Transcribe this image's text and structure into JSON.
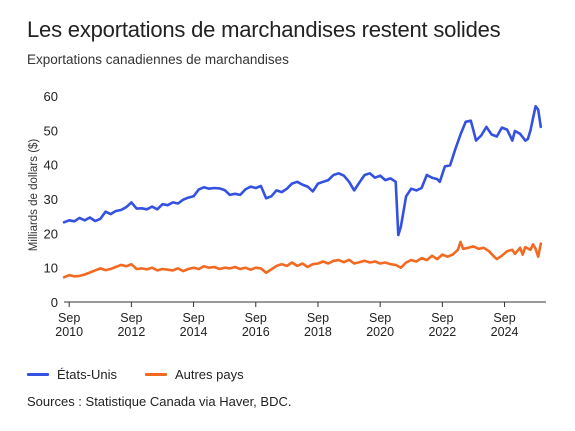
{
  "chart_data": {
    "type": "line",
    "title": "Les exportations de marchandises restent solides",
    "subtitle": "Exportations canadiennes de marchandises",
    "ylabel": "Milliards de dollars ($)",
    "xlabel": "",
    "ylim": [
      0,
      60
    ],
    "yticks": [
      0,
      10,
      20,
      30,
      40,
      50,
      60
    ],
    "xlim": [
      "2009-07",
      "2025-01"
    ],
    "xticks": [
      {
        "month": "Sep",
        "year": "2010",
        "at": "2009-09"
      },
      {
        "month": "Sep",
        "year": "2012",
        "at": "2011-09"
      },
      {
        "month": "Sep",
        "year": "2014",
        "at": "2013-09"
      },
      {
        "month": "Sep",
        "year": "2016",
        "at": "2015-09"
      },
      {
        "month": "Sep",
        "year": "2018",
        "at": "2017-09"
      },
      {
        "month": "Sep",
        "year": "2020",
        "at": "2019-09"
      },
      {
        "month": "Sep",
        "year": "2022",
        "at": "2021-09"
      },
      {
        "month": "Sep",
        "year": "2024",
        "at": "2023-09"
      }
    ],
    "grid": false,
    "legend_position": "bottom-left",
    "series": [
      {
        "name": "États-Unis",
        "color": "#3451e0",
        "points": [
          [
            "2009-07",
            23.2
          ],
          [
            "2009-09",
            23.8
          ],
          [
            "2009-11",
            23.5
          ],
          [
            "2010-01",
            24.5
          ],
          [
            "2010-03",
            23.8
          ],
          [
            "2010-05",
            24.6
          ],
          [
            "2010-07",
            23.6
          ],
          [
            "2010-09",
            24.2
          ],
          [
            "2010-11",
            26.3
          ],
          [
            "2011-01",
            25.6
          ],
          [
            "2011-03",
            26.5
          ],
          [
            "2011-05",
            26.8
          ],
          [
            "2011-07",
            27.6
          ],
          [
            "2011-09",
            29.0
          ],
          [
            "2011-11",
            27.2
          ],
          [
            "2012-01",
            27.3
          ],
          [
            "2012-03",
            27.0
          ],
          [
            "2012-05",
            27.8
          ],
          [
            "2012-07",
            27.0
          ],
          [
            "2012-09",
            28.5
          ],
          [
            "2012-11",
            28.2
          ],
          [
            "2013-01",
            29.0
          ],
          [
            "2013-03",
            28.7
          ],
          [
            "2013-05",
            29.8
          ],
          [
            "2013-07",
            30.4
          ],
          [
            "2013-09",
            30.8
          ],
          [
            "2013-11",
            32.8
          ],
          [
            "2014-01",
            33.4
          ],
          [
            "2014-03",
            33.0
          ],
          [
            "2014-05",
            33.2
          ],
          [
            "2014-07",
            33.1
          ],
          [
            "2014-09",
            32.6
          ],
          [
            "2014-11",
            31.2
          ],
          [
            "2015-01",
            31.5
          ],
          [
            "2015-03",
            31.2
          ],
          [
            "2015-05",
            32.8
          ],
          [
            "2015-07",
            33.6
          ],
          [
            "2015-09",
            33.2
          ],
          [
            "2015-11",
            33.8
          ],
          [
            "2016-01",
            30.2
          ],
          [
            "2016-03",
            30.8
          ],
          [
            "2016-05",
            32.5
          ],
          [
            "2016-07",
            32.0
          ],
          [
            "2016-09",
            33.0
          ],
          [
            "2016-11",
            34.5
          ],
          [
            "2017-01",
            35.0
          ],
          [
            "2017-03",
            34.2
          ],
          [
            "2017-05",
            33.6
          ],
          [
            "2017-07",
            32.2
          ],
          [
            "2017-09",
            34.5
          ],
          [
            "2017-11",
            35.0
          ],
          [
            "2018-01",
            35.5
          ],
          [
            "2018-03",
            37.0
          ],
          [
            "2018-05",
            37.5
          ],
          [
            "2018-07",
            36.8
          ],
          [
            "2018-09",
            35.0
          ],
          [
            "2018-11",
            32.5
          ],
          [
            "2019-01",
            34.8
          ],
          [
            "2019-03",
            37.0
          ],
          [
            "2019-05",
            37.5
          ],
          [
            "2019-07",
            36.2
          ],
          [
            "2019-09",
            36.8
          ],
          [
            "2019-11",
            35.5
          ],
          [
            "2020-01",
            36.0
          ],
          [
            "2020-03",
            35.0
          ],
          [
            "2020-04",
            19.5
          ],
          [
            "2020-05",
            22.0
          ],
          [
            "2020-07",
            30.8
          ],
          [
            "2020-09",
            33.0
          ],
          [
            "2020-11",
            32.5
          ],
          [
            "2021-01",
            33.2
          ],
          [
            "2021-03",
            37.0
          ],
          [
            "2021-05",
            36.2
          ],
          [
            "2021-07",
            35.8
          ],
          [
            "2021-08",
            35.0
          ],
          [
            "2021-10",
            39.5
          ],
          [
            "2021-12",
            39.8
          ],
          [
            "2022-02",
            44.5
          ],
          [
            "2022-04",
            48.8
          ],
          [
            "2022-06",
            52.5
          ],
          [
            "2022-08",
            52.8
          ],
          [
            "2022-09",
            50.0
          ],
          [
            "2022-10",
            47.0
          ],
          [
            "2022-12",
            48.5
          ],
          [
            "2023-02",
            51.0
          ],
          [
            "2023-04",
            48.8
          ],
          [
            "2023-06",
            48.2
          ],
          [
            "2023-08",
            50.8
          ],
          [
            "2023-10",
            50.2
          ],
          [
            "2023-12",
            47.0
          ],
          [
            "2024-01",
            49.8
          ],
          [
            "2024-03",
            49.0
          ],
          [
            "2024-05",
            47.0
          ],
          [
            "2024-06",
            47.5
          ],
          [
            "2024-07",
            50.0
          ],
          [
            "2024-08",
            53.5
          ],
          [
            "2024-09",
            57.0
          ],
          [
            "2024-10",
            56.0
          ],
          [
            "2024-11",
            51.0
          ]
        ]
      },
      {
        "name": "Autres pays",
        "color": "#f26a21",
        "points": [
          [
            "2009-07",
            7.2
          ],
          [
            "2009-09",
            7.8
          ],
          [
            "2009-11",
            7.5
          ],
          [
            "2010-01",
            7.6
          ],
          [
            "2010-03",
            8.0
          ],
          [
            "2010-05",
            8.6
          ],
          [
            "2010-07",
            9.2
          ],
          [
            "2010-09",
            9.8
          ],
          [
            "2010-11",
            9.3
          ],
          [
            "2011-01",
            9.6
          ],
          [
            "2011-03",
            10.2
          ],
          [
            "2011-05",
            10.8
          ],
          [
            "2011-07",
            10.4
          ],
          [
            "2011-09",
            11.0
          ],
          [
            "2011-11",
            9.6
          ],
          [
            "2012-01",
            9.8
          ],
          [
            "2012-03",
            9.5
          ],
          [
            "2012-05",
            10.0
          ],
          [
            "2012-07",
            9.2
          ],
          [
            "2012-09",
            9.6
          ],
          [
            "2012-11",
            9.4
          ],
          [
            "2013-01",
            9.2
          ],
          [
            "2013-03",
            9.8
          ],
          [
            "2013-05",
            9.0
          ],
          [
            "2013-07",
            9.6
          ],
          [
            "2013-09",
            10.0
          ],
          [
            "2013-11",
            9.6
          ],
          [
            "2014-01",
            10.4
          ],
          [
            "2014-03",
            10.0
          ],
          [
            "2014-05",
            10.2
          ],
          [
            "2014-07",
            9.6
          ],
          [
            "2014-09",
            10.0
          ],
          [
            "2014-11",
            9.8
          ],
          [
            "2015-01",
            10.2
          ],
          [
            "2015-03",
            9.6
          ],
          [
            "2015-05",
            10.0
          ],
          [
            "2015-07",
            9.4
          ],
          [
            "2015-09",
            10.0
          ],
          [
            "2015-11",
            9.8
          ],
          [
            "2016-01",
            8.5
          ],
          [
            "2016-03",
            9.5
          ],
          [
            "2016-05",
            10.5
          ],
          [
            "2016-07",
            11.0
          ],
          [
            "2016-09",
            10.5
          ],
          [
            "2016-11",
            11.5
          ],
          [
            "2017-01",
            10.5
          ],
          [
            "2017-03",
            11.2
          ],
          [
            "2017-05",
            10.2
          ],
          [
            "2017-07",
            11.0
          ],
          [
            "2017-09",
            11.2
          ],
          [
            "2017-11",
            11.8
          ],
          [
            "2018-01",
            11.2
          ],
          [
            "2018-03",
            12.0
          ],
          [
            "2018-05",
            12.2
          ],
          [
            "2018-07",
            11.6
          ],
          [
            "2018-09",
            12.3
          ],
          [
            "2018-11",
            11.2
          ],
          [
            "2019-01",
            11.6
          ],
          [
            "2019-03",
            12.0
          ],
          [
            "2019-05",
            11.5
          ],
          [
            "2019-07",
            11.8
          ],
          [
            "2019-09",
            11.2
          ],
          [
            "2019-11",
            11.5
          ],
          [
            "2020-01",
            11.0
          ],
          [
            "2020-03",
            10.8
          ],
          [
            "2020-05",
            10.0
          ],
          [
            "2020-07",
            11.5
          ],
          [
            "2020-09",
            12.2
          ],
          [
            "2020-11",
            11.8
          ],
          [
            "2021-01",
            12.8
          ],
          [
            "2021-03",
            12.2
          ],
          [
            "2021-05",
            13.5
          ],
          [
            "2021-07",
            12.5
          ],
          [
            "2021-09",
            13.8
          ],
          [
            "2021-11",
            13.2
          ],
          [
            "2022-01",
            13.8
          ],
          [
            "2022-03",
            15.2
          ],
          [
            "2022-04",
            17.5
          ],
          [
            "2022-05",
            15.5
          ],
          [
            "2022-07",
            15.8
          ],
          [
            "2022-09",
            16.2
          ],
          [
            "2022-11",
            15.5
          ],
          [
            "2023-01",
            15.8
          ],
          [
            "2023-03",
            14.8
          ],
          [
            "2023-05",
            13.2
          ],
          [
            "2023-06",
            12.5
          ],
          [
            "2023-08",
            13.5
          ],
          [
            "2023-10",
            14.8
          ],
          [
            "2023-12",
            15.2
          ],
          [
            "2024-01",
            14.0
          ],
          [
            "2024-03",
            15.8
          ],
          [
            "2024-04",
            13.8
          ],
          [
            "2024-05",
            16.0
          ],
          [
            "2024-07",
            15.2
          ],
          [
            "2024-08",
            16.8
          ],
          [
            "2024-09",
            15.5
          ],
          [
            "2024-10",
            13.2
          ],
          [
            "2024-11",
            17.0
          ]
        ]
      }
    ],
    "source": "Sources : Statistique Canada via Haver, BDC."
  }
}
